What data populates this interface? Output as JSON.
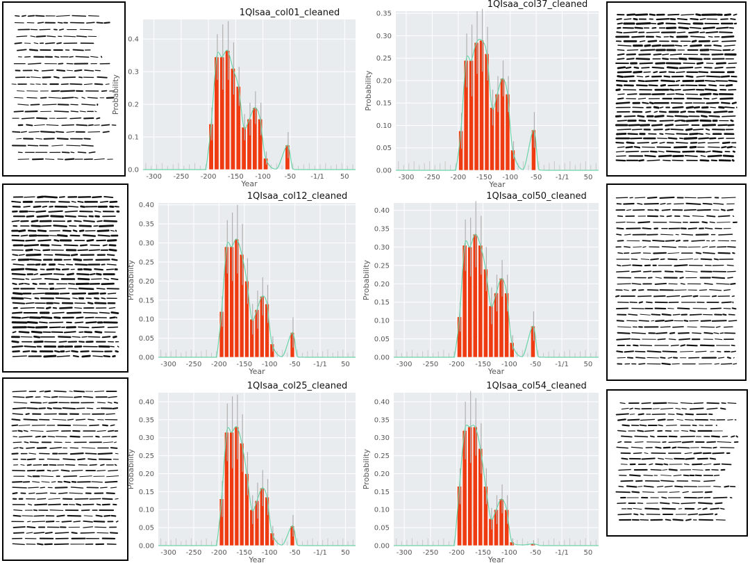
{
  "colors": {
    "panel_bg": "#e9ecef",
    "grid": "#ffffff",
    "bar": "#ee3b12",
    "bar_edge": "#ffffff",
    "curve": "#6cd3a8",
    "error_bar": "#b0b0b0"
  },
  "thumbnails": [
    {
      "name": "thumb-col01",
      "style": "irregular"
    },
    {
      "name": "thumb-col37",
      "style": "dense"
    },
    {
      "name": "thumb-col12",
      "style": "dense"
    },
    {
      "name": "thumb-col50",
      "style": "regular"
    },
    {
      "name": "thumb-col25",
      "style": "regular"
    },
    {
      "name": "thumb-col54",
      "style": "irregular"
    }
  ],
  "chart_data": [
    {
      "type": "bar",
      "title": "1QIsaa_col01_cleaned",
      "xlabel": "Year",
      "ylabel": "Probability",
      "xlim": [
        -320,
        70
      ],
      "ylim": [
        0,
        0.46
      ],
      "xticks": [
        -300,
        -250,
        -200,
        -150,
        -100,
        -50,
        0,
        50
      ],
      "xtick_labels": [
        "-300",
        "-250",
        "-200",
        "-150",
        "-100",
        "-50",
        "-1/1",
        "50"
      ],
      "yticks": [
        0,
        0.1,
        0.2,
        0.3,
        0.4
      ],
      "ytick_labels": [
        "0.0",
        "0.1",
        "0.2",
        "0.3",
        "0.4"
      ],
      "grid": true,
      "x": [
        -195,
        -185,
        -175,
        -165,
        -155,
        -145,
        -135,
        -125,
        -115,
        -105,
        -95,
        -55
      ],
      "values": [
        0.14,
        0.345,
        0.345,
        0.365,
        0.31,
        0.255,
        0.13,
        0.155,
        0.19,
        0.155,
        0.035,
        0.075
      ],
      "errors": [
        0.05,
        0.07,
        0.1,
        0.09,
        0.08,
        0.06,
        0.04,
        0.05,
        0.05,
        0.05,
        0.02,
        0.04
      ]
    },
    {
      "type": "bar",
      "title": "1QIsaa_col37_cleaned",
      "xlabel": "Year",
      "ylabel": "Probability",
      "xlim": [
        -320,
        70
      ],
      "ylim": [
        0,
        0.355
      ],
      "xticks": [
        -300,
        -250,
        -200,
        -150,
        -100,
        -50,
        0,
        50
      ],
      "xtick_labels": [
        "-300",
        "-250",
        "-200",
        "-150",
        "-100",
        "-50",
        "-1/1",
        "50"
      ],
      "yticks": [
        0,
        0.05,
        0.1,
        0.15,
        0.2,
        0.25,
        0.3,
        0.35
      ],
      "ytick_labels": [
        "0.00",
        "0.05",
        "0.10",
        "0.15",
        "0.20",
        "0.25",
        "0.30",
        "0.35"
      ],
      "grid": true,
      "x": [
        -195,
        -185,
        -175,
        -165,
        -155,
        -145,
        -135,
        -125,
        -115,
        -105,
        -95,
        -55
      ],
      "values": [
        0.088,
        0.245,
        0.245,
        0.285,
        0.29,
        0.26,
        0.14,
        0.17,
        0.205,
        0.17,
        0.045,
        0.09
      ],
      "errors": [
        0.04,
        0.06,
        0.08,
        0.07,
        0.07,
        0.06,
        0.04,
        0.04,
        0.04,
        0.04,
        0.02,
        0.04
      ]
    },
    {
      "type": "bar",
      "title": "1QIsaa_col12_cleaned",
      "xlabel": "Year",
      "ylabel": "Probability",
      "xlim": [
        -320,
        70
      ],
      "ylim": [
        0,
        0.405
      ],
      "xticks": [
        -300,
        -250,
        -200,
        -150,
        -100,
        -50,
        0,
        50
      ],
      "xtick_labels": [
        "-300",
        "-250",
        "-200",
        "-150",
        "-100",
        "-50",
        "-1/1",
        "50"
      ],
      "yticks": [
        0,
        0.05,
        0.1,
        0.15,
        0.2,
        0.25,
        0.3,
        0.35,
        0.4
      ],
      "ytick_labels": [
        "0.00",
        "0.05",
        "0.10",
        "0.15",
        "0.20",
        "0.25",
        "0.30",
        "0.35",
        "0.40"
      ],
      "grid": true,
      "x": [
        -195,
        -185,
        -175,
        -165,
        -155,
        -145,
        -135,
        -125,
        -115,
        -105,
        -95,
        -55
      ],
      "values": [
        0.12,
        0.29,
        0.29,
        0.31,
        0.27,
        0.2,
        0.1,
        0.125,
        0.16,
        0.14,
        0.035,
        0.065
      ],
      "errors": [
        0.04,
        0.07,
        0.09,
        0.09,
        0.08,
        0.06,
        0.04,
        0.05,
        0.05,
        0.05,
        0.02,
        0.04
      ]
    },
    {
      "type": "bar",
      "title": "1QIsaa_col50_cleaned",
      "xlabel": "Year",
      "ylabel": "Probability",
      "xlim": [
        -320,
        70
      ],
      "ylim": [
        0,
        0.42
      ],
      "xticks": [
        -300,
        -250,
        -200,
        -150,
        -100,
        -50,
        0,
        50
      ],
      "xtick_labels": [
        "-300",
        "-250",
        "-200",
        "-150",
        "-100",
        "-50",
        "-1/1",
        "50"
      ],
      "yticks": [
        0,
        0.05,
        0.1,
        0.15,
        0.2,
        0.25,
        0.3,
        0.35,
        0.4
      ],
      "ytick_labels": [
        "0.00",
        "0.05",
        "0.10",
        "0.15",
        "0.20",
        "0.25",
        "0.30",
        "0.35",
        "0.40"
      ],
      "grid": true,
      "x": [
        -195,
        -185,
        -175,
        -165,
        -155,
        -145,
        -135,
        -125,
        -115,
        -105,
        -95,
        -55
      ],
      "values": [
        0.11,
        0.305,
        0.3,
        0.335,
        0.305,
        0.24,
        0.14,
        0.175,
        0.215,
        0.175,
        0.04,
        0.085
      ],
      "errors": [
        0.04,
        0.07,
        0.08,
        0.09,
        0.08,
        0.06,
        0.05,
        0.05,
        0.05,
        0.05,
        0.02,
        0.04
      ]
    },
    {
      "type": "bar",
      "title": "1QIsaa_col25_cleaned",
      "xlabel": "Year",
      "ylabel": "Probability",
      "xlim": [
        -320,
        70
      ],
      "ylim": [
        0,
        0.425
      ],
      "xticks": [
        -300,
        -250,
        -200,
        -150,
        -100,
        -50,
        0,
        50
      ],
      "xtick_labels": [
        "-300",
        "-250",
        "-200",
        "-150",
        "-100",
        "-50",
        "-1/1",
        "50"
      ],
      "yticks": [
        0,
        0.05,
        0.1,
        0.15,
        0.2,
        0.25,
        0.3,
        0.35,
        0.4
      ],
      "ytick_labels": [
        "0.00",
        "0.05",
        "0.10",
        "0.15",
        "0.20",
        "0.25",
        "0.30",
        "0.35",
        "0.40"
      ],
      "grid": true,
      "x": [
        -195,
        -185,
        -175,
        -165,
        -155,
        -145,
        -135,
        -125,
        -115,
        -105,
        -95,
        -55
      ],
      "values": [
        0.13,
        0.315,
        0.315,
        0.33,
        0.285,
        0.2,
        0.1,
        0.125,
        0.16,
        0.135,
        0.035,
        0.055
      ],
      "errors": [
        0.05,
        0.08,
        0.1,
        0.09,
        0.08,
        0.06,
        0.04,
        0.05,
        0.05,
        0.05,
        0.02,
        0.03
      ]
    },
    {
      "type": "bar",
      "title": "1QIsaa_col54_cleaned",
      "xlabel": "Year",
      "ylabel": "Probability",
      "xlim": [
        -320,
        70
      ],
      "ylim": [
        0,
        0.425
      ],
      "xticks": [
        -300,
        -250,
        -200,
        -150,
        -100,
        -50,
        0,
        50
      ],
      "xtick_labels": [
        "-300",
        "-250",
        "-200",
        "-150",
        "-100",
        "-50",
        "-1/1",
        "50"
      ],
      "yticks": [
        0,
        0.05,
        0.1,
        0.15,
        0.2,
        0.25,
        0.3,
        0.35,
        0.4
      ],
      "ytick_labels": [
        "0.00",
        "0.05",
        "0.10",
        "0.15",
        "0.20",
        "0.25",
        "0.30",
        "0.35",
        "0.40"
      ],
      "grid": true,
      "x": [
        -195,
        -185,
        -175,
        -165,
        -155,
        -145,
        -135,
        -125,
        -115,
        -105,
        -95,
        -55
      ],
      "values": [
        0.165,
        0.32,
        0.33,
        0.33,
        0.27,
        0.165,
        0.075,
        0.1,
        0.13,
        0.1,
        0.01,
        0.005
      ],
      "errors": [
        0.05,
        0.08,
        0.1,
        0.08,
        0.07,
        0.05,
        0.03,
        0.04,
        0.04,
        0.04,
        0.01,
        0.01
      ]
    }
  ]
}
